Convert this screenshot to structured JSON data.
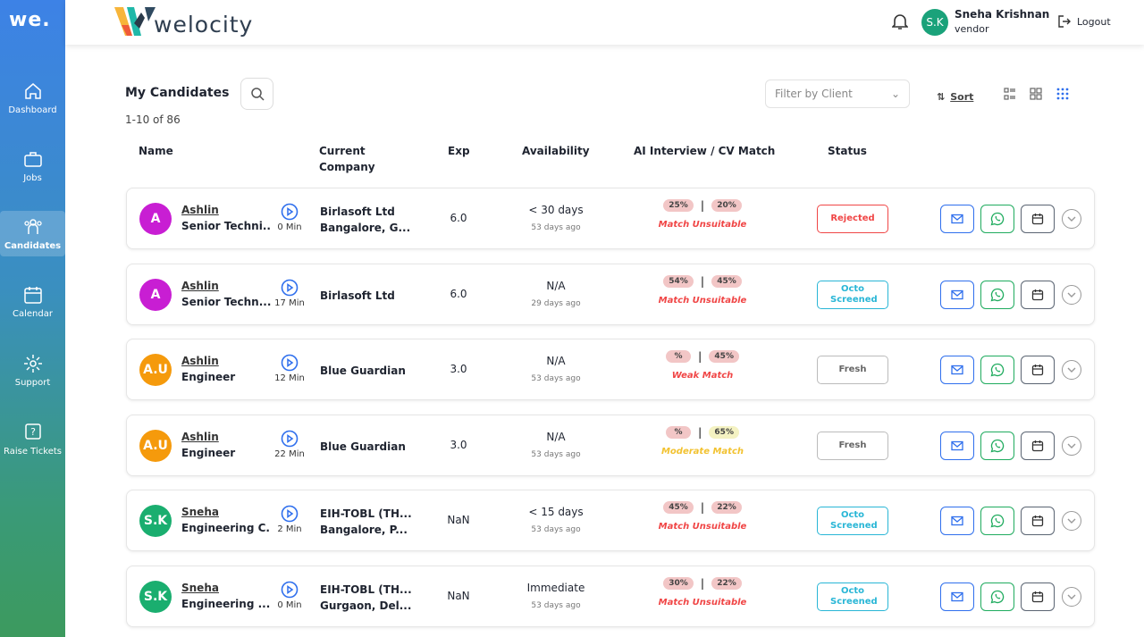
{
  "sidebar": {
    "brand": "we.",
    "items": [
      {
        "label": "Dashboard",
        "icon": "home-icon"
      },
      {
        "label": "Jobs",
        "icon": "briefcase-icon"
      },
      {
        "label": "Candidates",
        "icon": "users-icon",
        "active": true
      },
      {
        "label": "Calendar",
        "icon": "calendar-icon"
      },
      {
        "label": "Support",
        "icon": "gear-icon"
      },
      {
        "label": "Raise Tickets",
        "icon": "help-ticket-icon"
      }
    ]
  },
  "header": {
    "logo_text": "welocity",
    "user_initials": "S.K",
    "user_name": "Sneha Krishnan",
    "user_role": "vendor",
    "logout_label": "Logout"
  },
  "toolbar": {
    "title": "My Candidates",
    "count": "1-10 of 86",
    "filter_placeholder": "Filter by Client",
    "sort_label": "Sort"
  },
  "columns": [
    "Name",
    "Current Company",
    "Exp",
    "Availability",
    "AI Interview / CV Match",
    "Status"
  ],
  "colors": {
    "accent": "#2f6fed",
    "red": "#f04646",
    "cyan": "#29b6d6",
    "green": "#1fab5e",
    "yellow": "#f2c230"
  },
  "rows": [
    {
      "initials": "A",
      "avatar_color": "#c81ed3",
      "name": "Ashlin",
      "role": "Senior Techni...",
      "duration": "0 Min",
      "company": "Birlasoft Ltd",
      "location": "Bangalore, G...",
      "exp": "6.0",
      "availability": "< 30 days",
      "ago": "53 days ago",
      "ai": "25%",
      "cv": "20%",
      "cv_yellow": false,
      "match": "Match Unsuitable",
      "match_color": "#f04646",
      "status": "Rejected",
      "status_color": "#f04646"
    },
    {
      "initials": "A",
      "avatar_color": "#c81ed3",
      "name": "Ashlin",
      "role": "Senior Techn...",
      "duration": "17 Min",
      "company": "Birlasoft Ltd",
      "location": "",
      "exp": "6.0",
      "availability": "N/A",
      "ago": "29 days ago",
      "ai": "54%",
      "cv": "45%",
      "cv_yellow": false,
      "match": "Match Unsuitable",
      "match_color": "#f04646",
      "status": "Octo Screened",
      "status_color": "#29b6d6"
    },
    {
      "initials": "A.U",
      "avatar_color": "#f59a0c",
      "name": "Ashlin",
      "role": "Engineer",
      "duration": "12 Min",
      "company": "Blue Guardian",
      "location": "",
      "exp": "3.0",
      "availability": "N/A",
      "ago": "53 days ago",
      "ai": "%",
      "cv": "45%",
      "cv_yellow": false,
      "match": "Weak Match",
      "match_color": "#f04646",
      "status": "Fresh",
      "status_color": "#bbbbbb"
    },
    {
      "initials": "A.U",
      "avatar_color": "#f59a0c",
      "name": "Ashlin",
      "role": "Engineer",
      "duration": "22 Min",
      "company": "Blue Guardian",
      "location": "",
      "exp": "3.0",
      "availability": "N/A",
      "ago": "53 days ago",
      "ai": "%",
      "cv": "65%",
      "cv_yellow": true,
      "match": "Moderate Match",
      "match_color": "#f2c230",
      "status": "Fresh",
      "status_color": "#bbbbbb"
    },
    {
      "initials": "S.K",
      "avatar_color": "#1aae6f",
      "name": "Sneha",
      "role": "Engineering C...",
      "duration": "2 Min",
      "company": "EIH-TOBL (TH...",
      "location": "Bangalore, P...",
      "exp": "NaN",
      "availability": "< 15 days",
      "ago": "53 days ago",
      "ai": "45%",
      "cv": "22%",
      "cv_yellow": false,
      "match": "Match Unsuitable",
      "match_color": "#f04646",
      "status": "Octo Screened",
      "status_color": "#29b6d6"
    },
    {
      "initials": "S.K",
      "avatar_color": "#1aae6f",
      "name": "Sneha",
      "role": "Engineering ...",
      "duration": "0 Min",
      "company": "EIH-TOBL (TH...",
      "location": "Gurgaon, Del...",
      "exp": "NaN",
      "availability": "Immediate",
      "ago": "53 days ago",
      "ai": "30%",
      "cv": "22%",
      "cv_yellow": false,
      "match": "Match Unsuitable",
      "match_color": "#f04646",
      "status": "Octo Screened",
      "status_color": "#29b6d6"
    }
  ]
}
